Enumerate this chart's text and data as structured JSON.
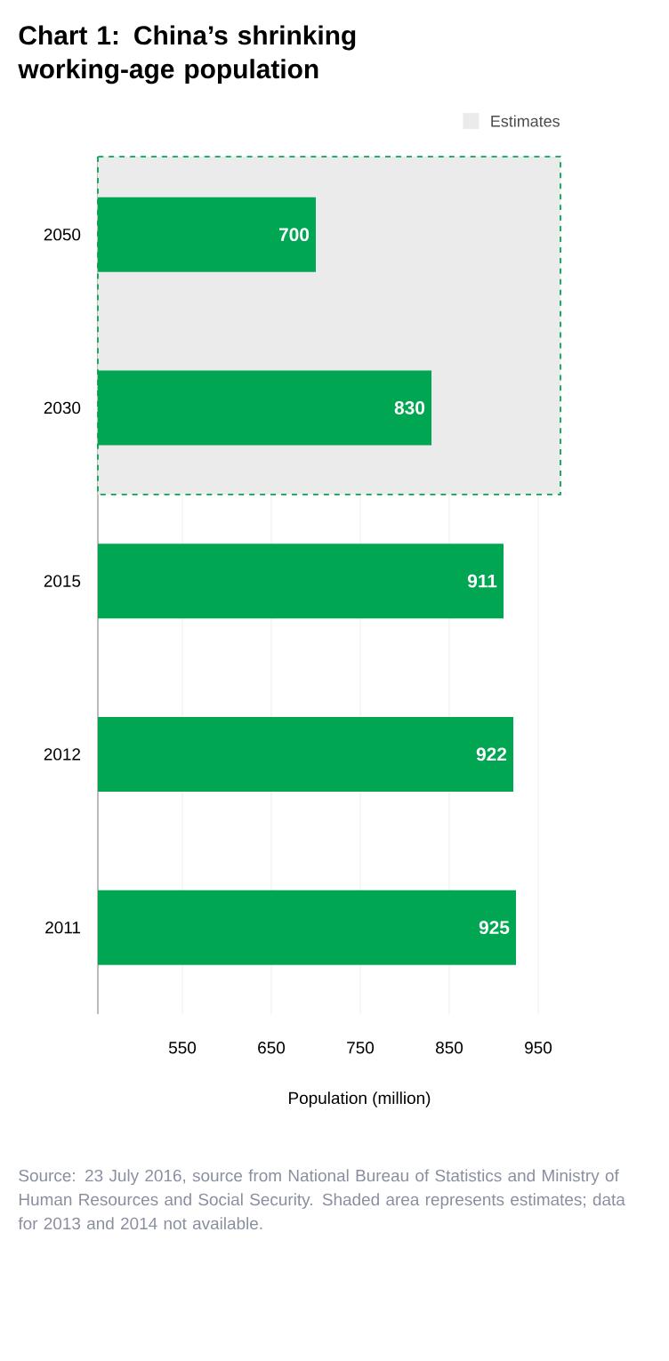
{
  "chart_data": {
    "type": "bar",
    "orientation": "horizontal",
    "title": "Chart 1: China’s shrinking working-age population",
    "xlabel": "Population (million)",
    "categories": [
      "2050",
      "2030",
      "2015",
      "2012",
      "2011"
    ],
    "values": [
      700,
      830,
      911,
      922,
      925
    ],
    "color": "#00a651",
    "xlim": [
      455,
      975
    ],
    "xticks": [
      550,
      650,
      750,
      850,
      950
    ],
    "grid": "x",
    "data_labels": true,
    "legend": "top right",
    "bands": [
      {
        "axis": "y",
        "from": "2050",
        "to": "2030",
        "label": "Estimates",
        "color": "#ebebeb"
      }
    ],
    "annotations": [
      "Source: 23 July 2016, source from National Bureau of Statistics and Ministry of Human Resources and Social Security. Shaded area represents estimates; data for 2013 and 2014 not available."
    ]
  }
}
